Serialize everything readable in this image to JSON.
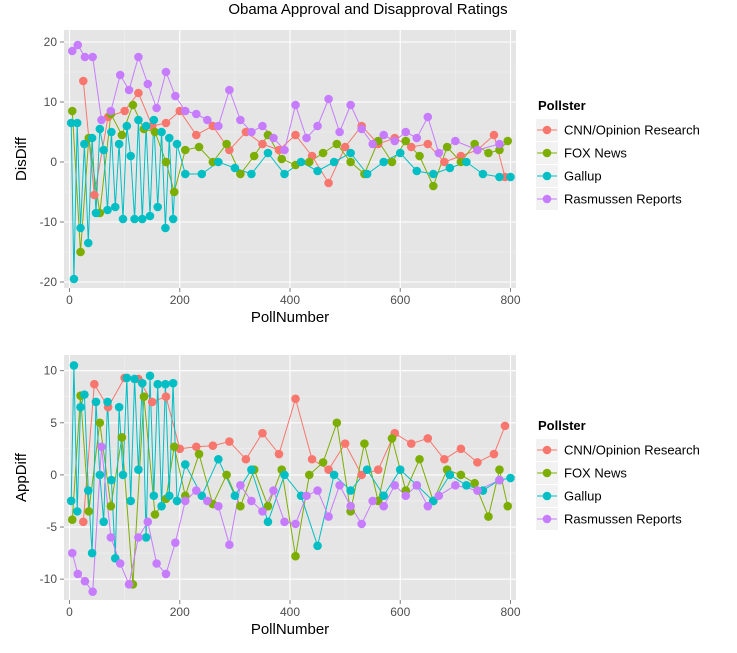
{
  "title": "Obama Approval and Disapproval Ratings",
  "colors": {
    "CNN/Opinion Research": "#F8766D",
    "FOX News": "#7CAE00",
    "Gallup": "#00BFC4",
    "Rasmussen Reports": "#C77CFF",
    "panel_bg": "#E5E5E5",
    "grid": "#FFFFFF"
  },
  "legend": {
    "title": "Pollster",
    "entries": [
      "CNN/Opinion Research",
      "FOX News",
      "Gallup",
      "Rasmussen Reports"
    ],
    "placement": "right"
  },
  "chart_data": [
    {
      "type": "line",
      "xlabel": "PollNumber",
      "ylabel": "DisDiff",
      "xlim": [
        -10,
        810
      ],
      "ylim": [
        -21,
        22
      ],
      "xticks": [
        0,
        200,
        400,
        600,
        800
      ],
      "yticks": [
        -20,
        -10,
        0,
        10,
        20
      ],
      "grid": true,
      "series": [
        {
          "name": "CNN/Opinion Research",
          "x": [
            25,
            45,
            70,
            100,
            125,
            150,
            175,
            200,
            230,
            260,
            290,
            320,
            350,
            380,
            410,
            440,
            470,
            500,
            530,
            560,
            590,
            620,
            650,
            680,
            710,
            740,
            770,
            790
          ],
          "y": [
            13.5,
            -5.5,
            7.5,
            8.5,
            11.5,
            6,
            6.5,
            8.5,
            4.5,
            6,
            2,
            5,
            3,
            2,
            4.5,
            1,
            -3.5,
            2.5,
            6,
            3,
            4,
            2.5,
            3,
            0,
            1,
            2,
            4.5,
            -2.5
          ]
        },
        {
          "name": "FOX News",
          "x": [
            5,
            20,
            35,
            55,
            75,
            95,
            115,
            135,
            155,
            175,
            190,
            210,
            235,
            260,
            285,
            310,
            335,
            360,
            385,
            410,
            435,
            460,
            485,
            510,
            535,
            560,
            585,
            610,
            635,
            660,
            685,
            710,
            735,
            760,
            780,
            795
          ],
          "y": [
            8.5,
            -15,
            4,
            -8.5,
            8,
            4.5,
            9.5,
            5.5,
            5,
            0,
            -5,
            2,
            2.5,
            0,
            3,
            -2,
            1,
            4.5,
            0.5,
            -0.5,
            0,
            1.5,
            3,
            0,
            -2,
            3.5,
            0,
            3.5,
            1,
            -4,
            2.5,
            0,
            3,
            1.5,
            2,
            3.5
          ]
        },
        {
          "name": "Gallup",
          "x": [
            3,
            8,
            14,
            20,
            27,
            34,
            41,
            48,
            55,
            62,
            69,
            76,
            83,
            90,
            97,
            104,
            111,
            118,
            125,
            132,
            139,
            146,
            153,
            160,
            167,
            174,
            181,
            188,
            195,
            210,
            240,
            270,
            300,
            330,
            360,
            390,
            420,
            450,
            480,
            510,
            540,
            570,
            600,
            630,
            660,
            690,
            720,
            750,
            780,
            800
          ],
          "y": [
            6.5,
            -19.5,
            6.5,
            -11,
            3,
            -13.5,
            4,
            -8.5,
            5.5,
            2,
            -8,
            5,
            -7.5,
            3,
            -9.5,
            6,
            1,
            -9.5,
            7,
            -9.5,
            6,
            -9,
            7,
            -7.5,
            5,
            -11,
            4,
            -9.5,
            3,
            -2,
            -2,
            0,
            -1,
            -2,
            1.5,
            -2,
            0,
            -1.5,
            0,
            1.5,
            -2,
            0,
            1.5,
            -1.5,
            -2,
            -1,
            0,
            -2,
            -2.5,
            -2.5
          ]
        },
        {
          "name": "Rasmussen Reports",
          "x": [
            5,
            15,
            28,
            42,
            58,
            75,
            92,
            108,
            125,
            142,
            158,
            175,
            192,
            210,
            230,
            250,
            270,
            290,
            310,
            330,
            350,
            370,
            390,
            410,
            430,
            450,
            470,
            490,
            510,
            530,
            550,
            570,
            590,
            610,
            630,
            650,
            670,
            700,
            740,
            780
          ],
          "y": [
            18.5,
            19.5,
            17.5,
            17.5,
            7,
            8.5,
            14.5,
            12,
            17.5,
            13,
            9,
            15,
            11,
            8.5,
            8,
            7,
            6,
            12,
            7,
            5,
            6,
            4,
            2,
            9.5,
            4,
            6,
            10.5,
            5,
            9.5,
            5.5,
            3,
            4.5,
            3.5,
            5,
            4,
            7.5,
            1.5,
            3.5,
            2,
            3
          ]
        }
      ]
    },
    {
      "type": "line",
      "xlabel": "PollNumber",
      "ylabel": "AppDiff",
      "xlim": [
        -10,
        810
      ],
      "ylim": [
        -12,
        11.5
      ],
      "xticks": [
        0,
        200,
        400,
        600,
        800
      ],
      "yticks": [
        -10,
        -5,
        0,
        5,
        10
      ],
      "grid": true,
      "series": [
        {
          "name": "CNN/Opinion Research",
          "x": [
            25,
            45,
            70,
            100,
            125,
            150,
            175,
            200,
            230,
            260,
            290,
            320,
            350,
            380,
            410,
            440,
            470,
            500,
            530,
            560,
            590,
            620,
            650,
            680,
            710,
            740,
            770,
            790
          ],
          "y": [
            -4.5,
            8.7,
            6.5,
            9.3,
            9.2,
            7,
            7.5,
            2.5,
            2.7,
            2.8,
            3.2,
            1.5,
            4,
            2,
            7.3,
            1.5,
            0.5,
            3,
            0,
            0.5,
            4,
            3,
            3.5,
            1.5,
            2.5,
            1.2,
            2,
            4.7
          ]
        },
        {
          "name": "FOX News",
          "x": [
            5,
            20,
            35,
            55,
            75,
            95,
            115,
            135,
            155,
            175,
            190,
            210,
            235,
            260,
            285,
            310,
            335,
            360,
            385,
            410,
            435,
            460,
            485,
            510,
            535,
            560,
            585,
            610,
            635,
            660,
            685,
            710,
            735,
            760,
            780,
            795
          ],
          "y": [
            -4.3,
            7.6,
            -3.5,
            5,
            -3,
            3.6,
            -10.5,
            7.5,
            -3.8,
            -2.3,
            2.7,
            -2,
            2,
            -2.8,
            0,
            -3,
            0.5,
            -3,
            0.5,
            -7.8,
            0,
            1.2,
            5,
            -3.5,
            3,
            -2.5,
            3.5,
            -1.5,
            1.5,
            -2.5,
            0.5,
            0,
            -0.8,
            -4,
            0.5,
            -3
          ]
        },
        {
          "name": "Gallup",
          "x": [
            3,
            8,
            14,
            20,
            27,
            34,
            41,
            48,
            55,
            62,
            69,
            76,
            83,
            90,
            97,
            104,
            111,
            118,
            125,
            132,
            139,
            146,
            153,
            160,
            167,
            174,
            181,
            188,
            195,
            210,
            240,
            270,
            300,
            330,
            360,
            390,
            420,
            450,
            480,
            510,
            540,
            570,
            600,
            630,
            660,
            690,
            720,
            750,
            780,
            800
          ],
          "y": [
            -2.5,
            10.5,
            -3.5,
            6.5,
            7.7,
            -1.5,
            -7.5,
            7,
            0,
            -4.5,
            7,
            -0.5,
            -8,
            6.5,
            0,
            9.3,
            -2.5,
            9.2,
            0.5,
            8.8,
            -6,
            9.5,
            -2,
            8.7,
            -3,
            8.7,
            -2,
            8.8,
            -2.5,
            1,
            -2,
            1.5,
            -2,
            0.5,
            -4.5,
            0,
            -2,
            -6.8,
            0,
            -1.5,
            0.5,
            -2,
            0.5,
            -1,
            -2.5,
            0,
            -1,
            -1.5,
            -0.5,
            -0.3
          ]
        },
        {
          "name": "Rasmussen Reports",
          "x": [
            5,
            15,
            28,
            42,
            58,
            75,
            92,
            108,
            125,
            142,
            158,
            175,
            192,
            210,
            230,
            250,
            270,
            290,
            310,
            330,
            350,
            370,
            390,
            410,
            430,
            450,
            470,
            490,
            510,
            530,
            550,
            570,
            590,
            610,
            630,
            650,
            670,
            700,
            740,
            780
          ],
          "y": [
            -7.5,
            -9.5,
            -10.2,
            -11.2,
            2.7,
            -6,
            -8.5,
            -10.5,
            -6,
            -4.5,
            -8.5,
            -9.5,
            -6.5,
            -2.5,
            -1.5,
            -2.5,
            -3,
            -6.7,
            -1,
            -2.5,
            -3.5,
            -1.5,
            -4.5,
            -4.7,
            -2,
            -1.5,
            -4,
            -1,
            -3,
            -4.7,
            -2.5,
            -3,
            -1,
            -2,
            -1,
            -3,
            -2,
            -1,
            -1.5,
            -0.5
          ]
        }
      ]
    }
  ]
}
